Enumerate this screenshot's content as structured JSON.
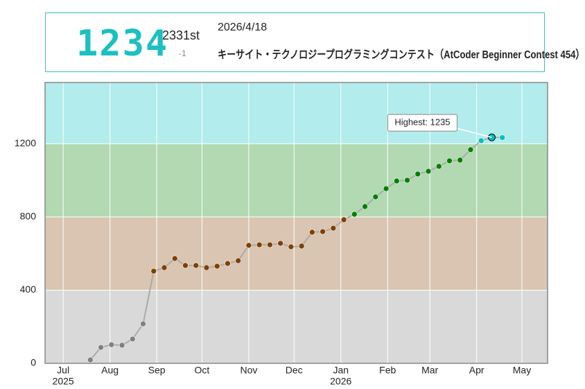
{
  "header": {
    "rating": "1234",
    "rank": "2331st",
    "change": "-1",
    "date": "2026/4/18",
    "contest": "キーサイト・テクノロジープログラミングコンテスト（AtCoder Beginner Contest 454）"
  },
  "chart_data": {
    "type": "line",
    "x": [
      "2025-07-19",
      "2025-07-26",
      "2025-08-02",
      "2025-08-09",
      "2025-08-16",
      "2025-08-23",
      "2025-08-30",
      "2025-09-06",
      "2025-09-13",
      "2025-09-20",
      "2025-09-27",
      "2025-10-04",
      "2025-10-11",
      "2025-10-18",
      "2025-10-25",
      "2025-11-01",
      "2025-11-08",
      "2025-11-15",
      "2025-11-22",
      "2025-11-29",
      "2025-12-06",
      "2025-12-13",
      "2025-12-20",
      "2025-12-27",
      "2026-01-03",
      "2026-01-10",
      "2026-01-17",
      "2026-01-24",
      "2026-01-31",
      "2026-02-07",
      "2026-02-14",
      "2026-02-21",
      "2026-02-28",
      "2026-03-07",
      "2026-03-14",
      "2026-03-21",
      "2026-03-28",
      "2026-04-04",
      "2026-04-11",
      "2026-04-18"
    ],
    "values": [
      19,
      87,
      102,
      99,
      133,
      216,
      504,
      523,
      573,
      535,
      535,
      523,
      531,
      546,
      561,
      645,
      648,
      648,
      656,
      637,
      641,
      717,
      720,
      739,
      785,
      815,
      857,
      910,
      955,
      997,
      1001,
      1035,
      1050,
      1077,
      1107,
      1111,
      1168,
      1217,
      1235,
      1234
    ],
    "xlim": [
      "2025-06-19",
      "2026-05-18"
    ],
    "xticks": [
      {
        "value": "2025-07-01",
        "label": "Jul"
      },
      {
        "value": "2025-08-01",
        "label": "Aug"
      },
      {
        "value": "2025-09-01",
        "label": "Sep"
      },
      {
        "value": "2025-10-01",
        "label": "Oct"
      },
      {
        "value": "2025-11-01",
        "label": "Nov"
      },
      {
        "value": "2025-12-01",
        "label": "Dec"
      },
      {
        "value": "2026-01-01",
        "label": "Jan"
      },
      {
        "value": "2026-02-01",
        "label": "Feb"
      },
      {
        "value": "2026-03-01",
        "label": "Mar"
      },
      {
        "value": "2026-04-01",
        "label": "Apr"
      },
      {
        "value": "2026-05-01",
        "label": "May"
      }
    ],
    "year_labels": [
      {
        "value": "2025-07-01",
        "label": "2025"
      },
      {
        "value": "2026-01-01",
        "label": "2026"
      }
    ],
    "ylim": [
      0,
      1535
    ],
    "yticks": [
      0,
      400,
      800,
      1200
    ],
    "grid": true,
    "line_color": "#aaaaaa",
    "bands": [
      {
        "from": 0,
        "to": 400,
        "color": "#d9d9d9",
        "point_color": "#808080"
      },
      {
        "from": 400,
        "to": 800,
        "color": "#d9c5b2",
        "point_color": "#804000"
      },
      {
        "from": 800,
        "to": 1200,
        "color": "#b2d9b2",
        "point_color": "#008000"
      },
      {
        "from": 1200,
        "to": 1600,
        "color": "#b2ecec",
        "point_color": "#00c0c0"
      }
    ],
    "annotation": {
      "label": "Highest: 1235",
      "x": "2026-04-11",
      "y": 1235
    }
  }
}
